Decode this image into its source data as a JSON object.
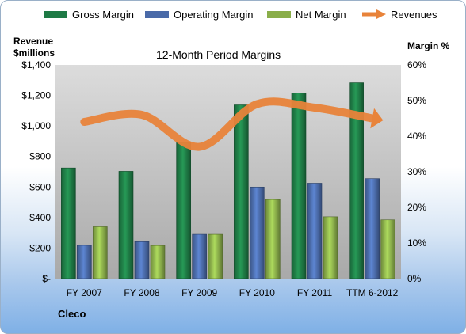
{
  "chart_data": {
    "type": "bar",
    "title": "12-Month Period Margins",
    "categories": [
      "FY 2007",
      "FY 2008",
      "FY 2009",
      "FY 2010",
      "FY 2011",
      "TTM 6-2012"
    ],
    "series": [
      {
        "name": "Gross Margin",
        "axis": "left",
        "color": "#1e7a45",
        "values": [
          725,
          703,
          890,
          1138,
          1215,
          1283
        ]
      },
      {
        "name": "Operating Margin",
        "axis": "left",
        "color": "#4a6aa8",
        "values": [
          218,
          242,
          290,
          600,
          625,
          655
        ]
      },
      {
        "name": "Net Margin",
        "axis": "left",
        "color": "#8aae4a",
        "values": [
          340,
          217,
          290,
          518,
          405,
          385
        ]
      },
      {
        "name": "Revenues",
        "axis": "right",
        "type": "line",
        "color": "#e8833a",
        "values": [
          44,
          46,
          37,
          49,
          48,
          45
        ]
      }
    ],
    "left_axis": {
      "label": "Revenue $millions",
      "ylim": [
        0,
        1400
      ],
      "ticks": [
        0,
        200,
        400,
        600,
        800,
        1000,
        1200,
        1400
      ],
      "tick_labels": [
        "$-",
        "$200",
        "$400",
        "$600",
        "$800",
        "$1,000",
        "$1,200",
        "$1,400"
      ]
    },
    "right_axis": {
      "label": "Margin %",
      "ylim": [
        0,
        60
      ],
      "ticks": [
        0,
        10,
        20,
        30,
        40,
        50,
        60
      ],
      "tick_labels": [
        "0%",
        "10%",
        "20%",
        "30%",
        "40%",
        "50%",
        "60%"
      ]
    },
    "grid": false,
    "legend_position": "top"
  },
  "legend": [
    {
      "label": "Gross Margin",
      "color": "#1e7a45"
    },
    {
      "label": "Operating Margin",
      "color": "#4a6aa8"
    },
    {
      "label": "Net Margin",
      "color": "#8aae4a"
    },
    {
      "label": "Revenues",
      "color": "#e8833a"
    }
  ],
  "left_axis_title": "Revenue $millions",
  "right_axis_title": "Margin %",
  "company": "Cleco"
}
